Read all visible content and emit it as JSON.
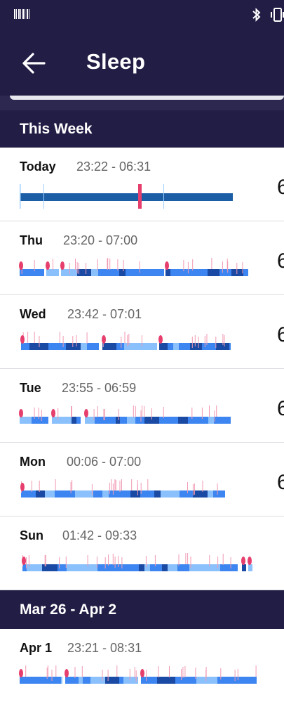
{
  "header": {
    "title": "Sleep"
  },
  "sections": [
    {
      "title": "This Week",
      "rows": [
        {
          "day": "Today",
          "range": "23:22 - 06:31",
          "dur": "6"
        },
        {
          "day": "Thu",
          "range": "23:20 - 07:00",
          "dur": "6"
        },
        {
          "day": "Wed",
          "range": "23:42 - 07:01",
          "dur": "6"
        },
        {
          "day": "Tue",
          "range": "23:55 - 06:59",
          "dur": "6"
        },
        {
          "day": "Mon",
          "range": "00:06 - 07:00",
          "dur": "6"
        },
        {
          "day": "Sun",
          "range": "01:42 - 09:33",
          "dur": ""
        }
      ]
    },
    {
      "title": "Mar 26 - Apr 2",
      "rows": [
        {
          "day": "Apr 1",
          "range": "23:21 - 08:31",
          "dur": ""
        }
      ]
    }
  ],
  "colors": {
    "header_bg": "#221d44",
    "deep": "#1a4aa3",
    "core": "#3d85f0",
    "light": "#8ac0fb",
    "awake": "#e63e6d"
  }
}
